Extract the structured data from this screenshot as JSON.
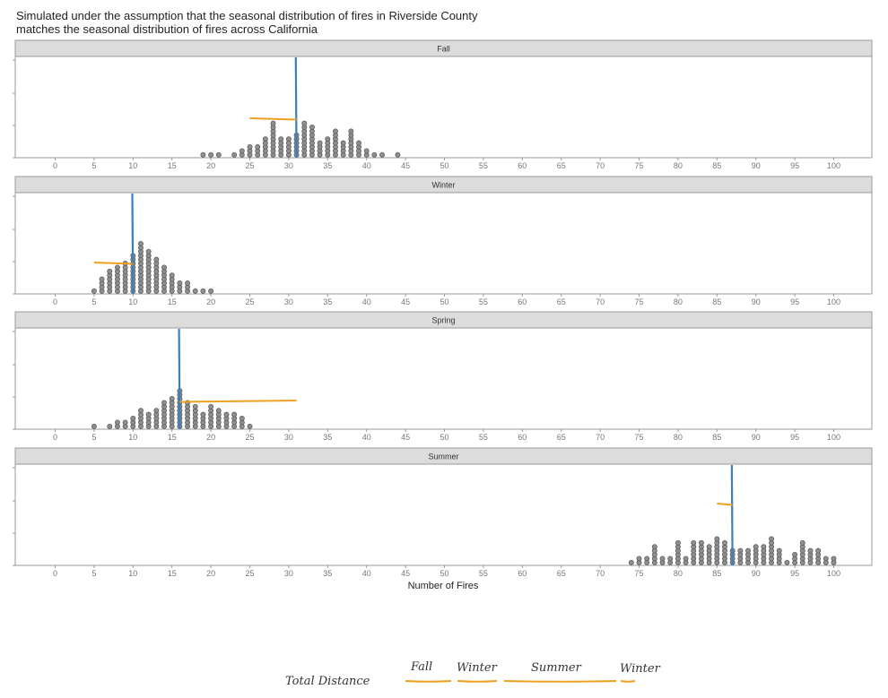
{
  "title": {
    "line1": "Simulated under the assumption that the seasonal distribution of fires in Riverside County",
    "line2": "matches the seasonal distribution of fires across California"
  },
  "colors": {
    "dot_fill": "#8f8f8f",
    "dot_stroke": "#555555",
    "observed_line": "#3a7fc1",
    "annotation_line": "#f0a020",
    "strip_bg": "#dcdcdc",
    "panel_border": "#9a9a9a"
  },
  "chart_data": {
    "type": "dot-histogram",
    "xlabel": "Number of Fires",
    "xlim": [
      -5,
      105
    ],
    "xticks": [
      0,
      5,
      10,
      15,
      20,
      25,
      30,
      35,
      40,
      45,
      50,
      55,
      60,
      65,
      70,
      75,
      80,
      85,
      90,
      95,
      100
    ],
    "grid": false,
    "facets": [
      {
        "name": "Fall",
        "observed": 31,
        "expected": 25,
        "counts": [
          [
            19,
            1
          ],
          [
            20,
            1
          ],
          [
            21,
            1
          ],
          [
            23,
            1
          ],
          [
            24,
            2
          ],
          [
            25,
            3
          ],
          [
            26,
            3
          ],
          [
            27,
            5
          ],
          [
            28,
            9
          ],
          [
            29,
            5
          ],
          [
            30,
            5
          ],
          [
            31,
            6
          ],
          [
            32,
            9
          ],
          [
            33,
            8
          ],
          [
            34,
            4
          ],
          [
            35,
            5
          ],
          [
            36,
            7
          ],
          [
            37,
            4
          ],
          [
            38,
            7
          ],
          [
            39,
            4
          ],
          [
            40,
            2
          ],
          [
            41,
            1
          ],
          [
            42,
            1
          ],
          [
            44,
            1
          ]
        ]
      },
      {
        "name": "Winter",
        "observed": 10,
        "expected": 5,
        "counts": [
          [
            5,
            1
          ],
          [
            6,
            4
          ],
          [
            7,
            6
          ],
          [
            8,
            7
          ],
          [
            9,
            8
          ],
          [
            10,
            10
          ],
          [
            11,
            13
          ],
          [
            12,
            11
          ],
          [
            13,
            9
          ],
          [
            14,
            7
          ],
          [
            15,
            5
          ],
          [
            16,
            3
          ],
          [
            17,
            3
          ],
          [
            18,
            1
          ],
          [
            19,
            1
          ],
          [
            20,
            1
          ]
        ]
      },
      {
        "name": "Spring",
        "observed": 16,
        "expected": 31,
        "counts": [
          [
            5,
            1
          ],
          [
            7,
            1
          ],
          [
            8,
            2
          ],
          [
            9,
            2
          ],
          [
            10,
            3
          ],
          [
            11,
            5
          ],
          [
            12,
            4
          ],
          [
            13,
            5
          ],
          [
            14,
            7
          ],
          [
            15,
            8
          ],
          [
            16,
            10
          ],
          [
            17,
            7
          ],
          [
            18,
            6
          ],
          [
            19,
            4
          ],
          [
            20,
            6
          ],
          [
            21,
            5
          ],
          [
            22,
            4
          ],
          [
            23,
            4
          ],
          [
            24,
            3
          ],
          [
            25,
            1
          ]
        ]
      },
      {
        "name": "Summer",
        "observed": 87,
        "expected": 85,
        "counts": [
          [
            74,
            1
          ],
          [
            75,
            2
          ],
          [
            76,
            2
          ],
          [
            77,
            5
          ],
          [
            78,
            2
          ],
          [
            79,
            2
          ],
          [
            80,
            6
          ],
          [
            81,
            2
          ],
          [
            82,
            6
          ],
          [
            83,
            6
          ],
          [
            84,
            5
          ],
          [
            85,
            7
          ],
          [
            86,
            6
          ],
          [
            87,
            4
          ],
          [
            88,
            4
          ],
          [
            89,
            4
          ],
          [
            90,
            5
          ],
          [
            91,
            5
          ],
          [
            92,
            7
          ],
          [
            93,
            4
          ],
          [
            94,
            1
          ],
          [
            95,
            3
          ],
          [
            96,
            6
          ],
          [
            97,
            4
          ],
          [
            98,
            4
          ],
          [
            99,
            2
          ],
          [
            100,
            2
          ]
        ]
      }
    ]
  },
  "annotation": {
    "total_label": "Total Distance",
    "segments": [
      {
        "label": "Fall"
      },
      {
        "label": "Winter"
      },
      {
        "label": "Summer"
      },
      {
        "label": "Winter"
      }
    ]
  }
}
